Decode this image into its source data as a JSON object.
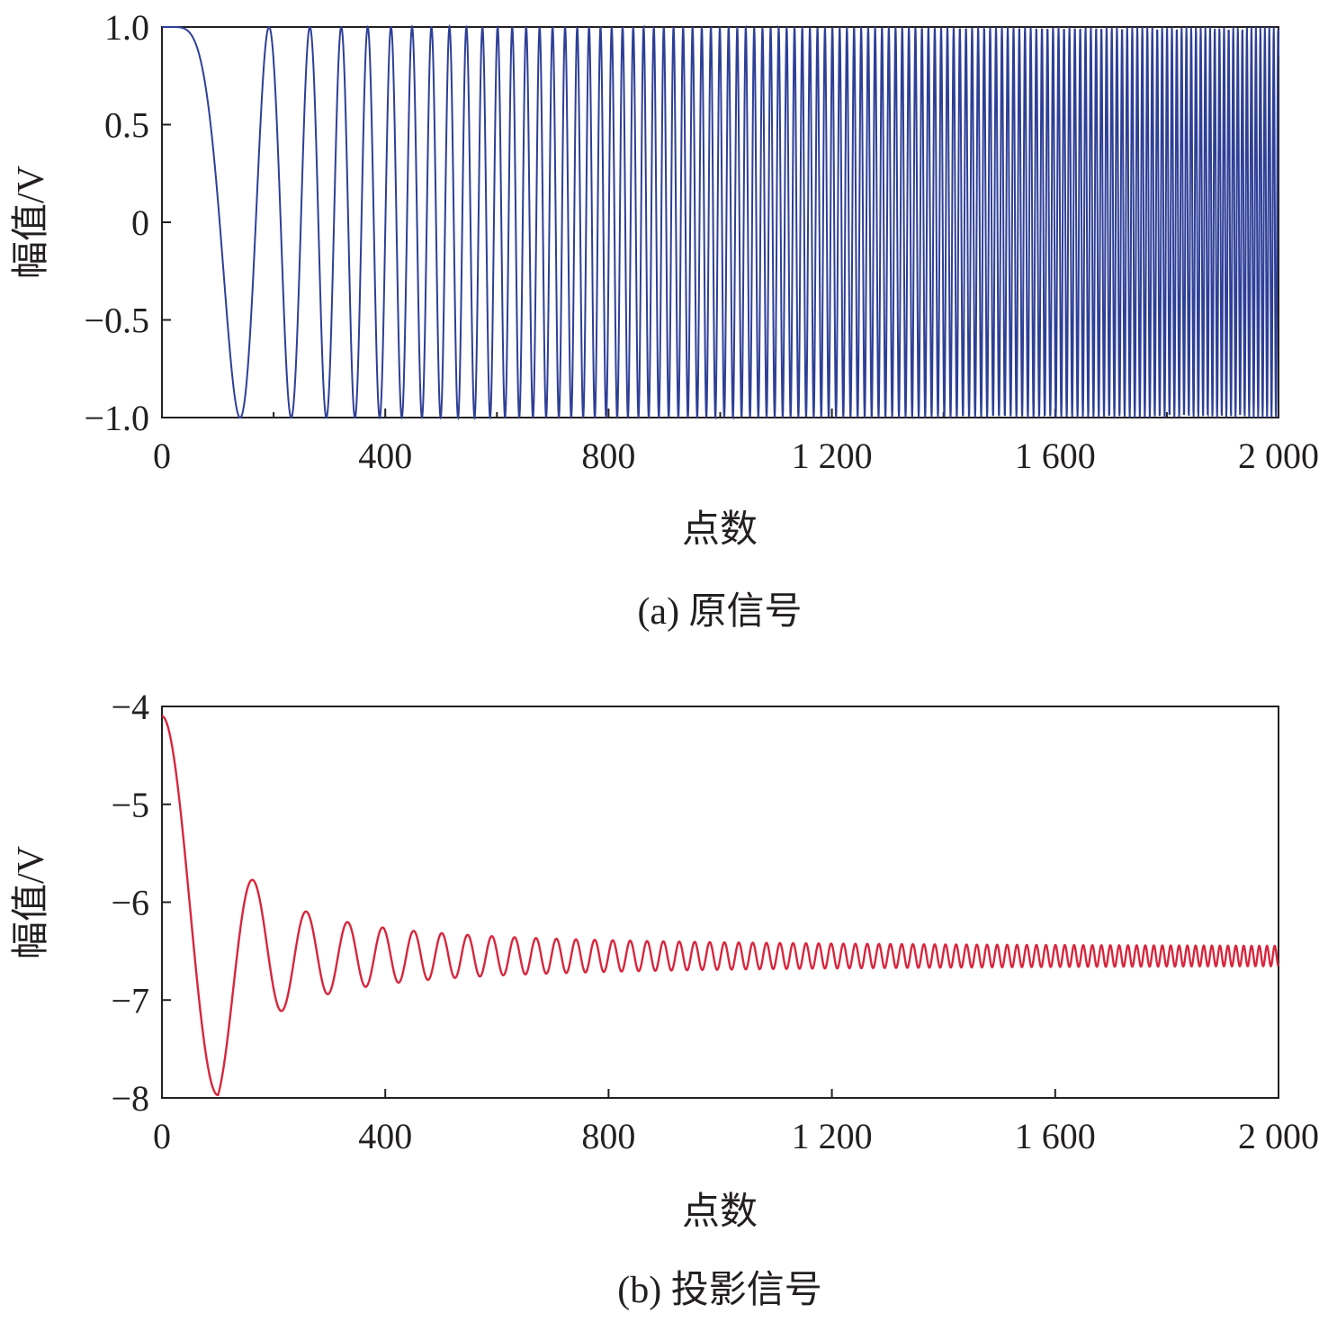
{
  "chart_data": [
    {
      "type": "line",
      "caption": "(a) 原信号",
      "xlabel": "点数",
      "ylabel": "幅值/V",
      "xlim": [
        0,
        2000
      ],
      "ylim": [
        -1.0,
        1.0
      ],
      "xticks": [
        0,
        400,
        800,
        1200,
        1600,
        2000
      ],
      "xtick_labels": [
        "0",
        "400",
        "800",
        "1 200",
        "1 600",
        "2 000"
      ],
      "xtick_minor": [
        200,
        600,
        1000,
        1400,
        1800
      ],
      "yticks": [
        -1.0,
        -0.5,
        0,
        0.5,
        1.0
      ],
      "ytick_labels": [
        "−1.0",
        "−0.5",
        "0",
        "0.5",
        "1.0"
      ],
      "grid": false,
      "color": "#2e3f97",
      "series": [
        {
          "description_model": "chirp cos(2*pi*f(n)*n/2000), frequency rising linearly",
          "points": 2000,
          "x": [
            0,
            15,
            140,
            195,
            245,
            285,
            320,
            350,
            375,
            400
          ],
          "y": [
            1.0,
            1.0,
            -1.0,
            1.0,
            -1.0,
            1.0,
            -1.0,
            1.0,
            -1.0,
            1.0
          ]
        }
      ]
    },
    {
      "type": "line",
      "caption": "(b) 投影信号",
      "xlabel": "点数",
      "ylabel": "幅值/V",
      "xlim": [
        0,
        2000
      ],
      "ylim": [
        -8,
        -4
      ],
      "xticks": [
        0,
        400,
        800,
        1200,
        1600,
        2000
      ],
      "xtick_labels": [
        "0",
        "400",
        "800",
        "1 200",
        "1 600",
        "2 000"
      ],
      "yticks": [
        -8,
        -7,
        -6,
        -5,
        -4
      ],
      "ytick_labels": [
        "−8",
        "−7",
        "−6",
        "−5",
        "−4"
      ],
      "grid": false,
      "color": "#d7263d",
      "series": [
        {
          "description_model": "decaying chirp oscillation converging to about -6.55",
          "points": 2000,
          "x": [
            0,
            100,
            175,
            222,
            265,
            300,
            332,
            355,
            385,
            410,
            440,
            480,
            2000
          ],
          "y": [
            -4.1,
            -7.97,
            -5.65,
            -7.27,
            -5.93,
            -7.07,
            -6.07,
            -6.97,
            -6.12,
            -6.88,
            -6.17,
            -6.22,
            -6.55
          ],
          "final_level": -6.55,
          "final_amplitude": 0.08
        }
      ]
    }
  ]
}
